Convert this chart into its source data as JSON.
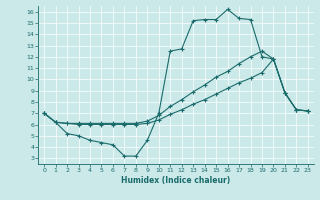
{
  "xlabel": "Humidex (Indice chaleur)",
  "bg_color": "#cce9e9",
  "line_color": "#1a6b6b",
  "xlim": [
    -0.5,
    23.5
  ],
  "ylim": [
    2.5,
    16.5
  ],
  "xticks": [
    0,
    1,
    2,
    3,
    4,
    5,
    6,
    7,
    8,
    9,
    10,
    11,
    12,
    13,
    14,
    15,
    16,
    17,
    18,
    19,
    20,
    21,
    22,
    23
  ],
  "yticks": [
    3,
    4,
    5,
    6,
    7,
    8,
    9,
    10,
    11,
    12,
    13,
    14,
    15,
    16
  ],
  "line1_x": [
    0,
    1,
    2,
    3,
    4,
    5,
    6,
    7,
    8,
    9,
    10,
    11,
    12,
    13,
    14,
    15,
    16,
    17,
    18,
    19,
    20,
    21,
    22,
    23
  ],
  "line1_y": [
    7.0,
    6.2,
    5.2,
    5.0,
    4.6,
    4.4,
    4.2,
    3.2,
    3.2,
    4.6,
    7.0,
    12.5,
    12.7,
    15.2,
    15.3,
    15.3,
    16.2,
    15.4,
    15.3,
    12.0,
    11.8,
    8.8,
    7.3,
    7.2
  ],
  "line2_x": [
    0,
    1,
    2,
    3,
    4,
    5,
    6,
    7,
    8,
    9,
    10,
    11,
    12,
    13,
    14,
    15,
    16,
    17,
    18,
    19,
    20,
    21,
    22,
    23
  ],
  "line2_y": [
    7.0,
    6.2,
    6.1,
    6.1,
    6.1,
    6.1,
    6.1,
    6.1,
    6.1,
    6.3,
    6.8,
    7.6,
    8.2,
    8.9,
    9.5,
    10.2,
    10.7,
    11.4,
    12.0,
    12.5,
    11.8,
    8.8,
    7.3,
    7.2
  ],
  "line3_x": [
    0,
    1,
    2,
    3,
    4,
    5,
    6,
    7,
    8,
    9,
    10,
    11,
    12,
    13,
    14,
    15,
    16,
    17,
    18,
    19,
    20,
    21,
    22,
    23
  ],
  "line3_y": [
    7.0,
    6.2,
    6.1,
    6.0,
    6.0,
    6.0,
    6.0,
    6.0,
    6.0,
    6.1,
    6.4,
    6.9,
    7.3,
    7.8,
    8.2,
    8.7,
    9.2,
    9.7,
    10.1,
    10.6,
    11.8,
    8.8,
    7.3,
    7.2
  ],
  "marker": "+",
  "markersize": 3,
  "linewidth": 0.8
}
